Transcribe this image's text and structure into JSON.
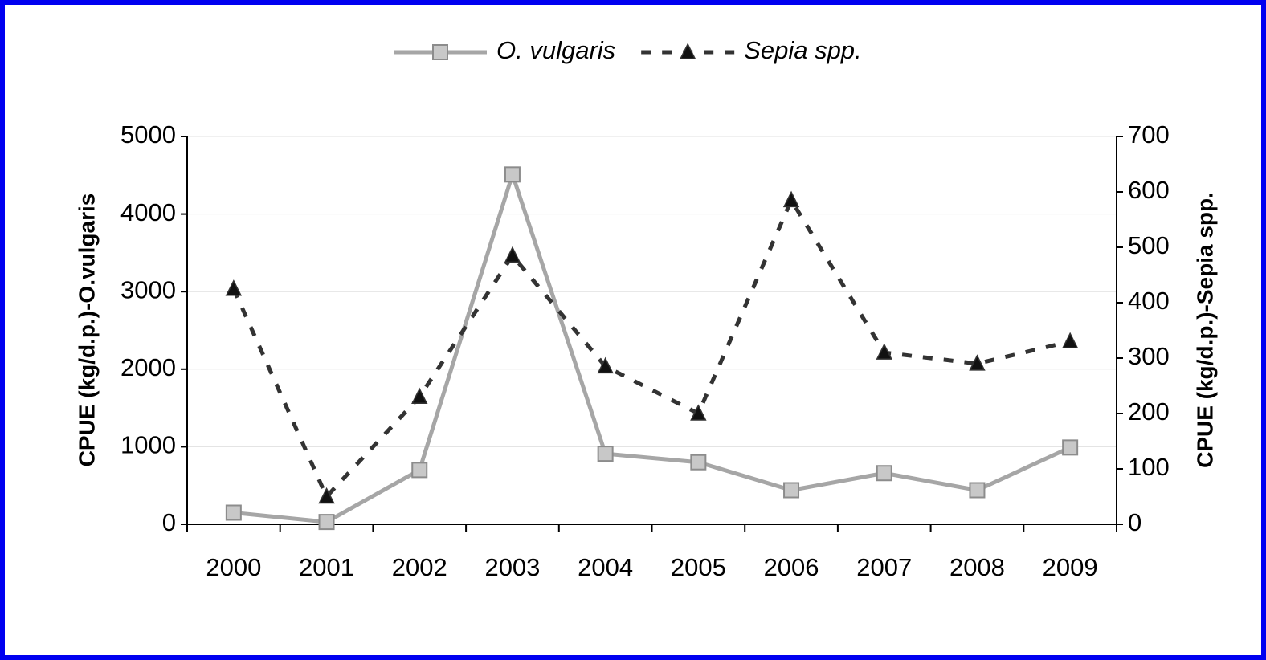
{
  "chart_data": {
    "type": "line",
    "ylabel": "CPUE (kg/d.p.)-O.vulgaris",
    "y2label": "CPUE (kg/d.p.)-Sepia spp.",
    "categories": [
      "2000",
      "2001",
      "2002",
      "2003",
      "2004",
      "2005",
      "2006",
      "2007",
      "2008",
      "2009"
    ],
    "series": [
      {
        "name": "O. vulgaris",
        "color": "#a6a6a6",
        "axis": "y",
        "values": [
          150,
          30,
          700,
          4510,
          910,
          800,
          440,
          660,
          440,
          990
        ]
      },
      {
        "name": "Sepia spp.",
        "color": "#333333",
        "axis": "y2",
        "values": [
          425,
          50,
          230,
          485,
          285,
          200,
          585,
          310,
          290,
          330
        ]
      }
    ],
    "ylim": [
      0,
      5000
    ],
    "yticks": [
      0,
      1000,
      2000,
      3000,
      4000,
      5000
    ],
    "y2lim": [
      0,
      700
    ],
    "y2ticks": [
      0,
      100,
      200,
      300,
      400,
      500,
      600,
      700
    ],
    "grid": true,
    "legend": "top"
  }
}
